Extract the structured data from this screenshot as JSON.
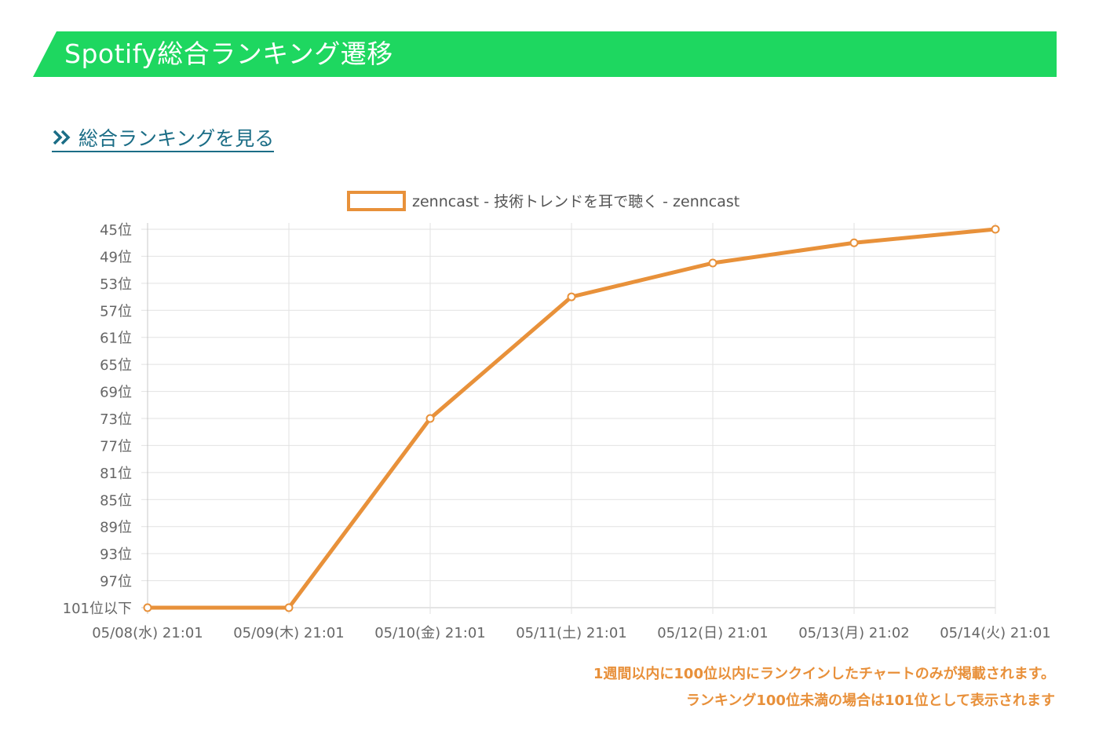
{
  "header": {
    "title": "Spotify総合ランキング遷移",
    "accent_color": "#1ed760"
  },
  "link": {
    "label": "総合ランキングを見る",
    "icon": "double-chevron-right-icon",
    "color": "#1b6d86"
  },
  "chart_data": {
    "type": "line",
    "title": "",
    "xlabel": "",
    "ylabel": "",
    "y_axis_reversed": true,
    "ylim": [
      45,
      101
    ],
    "y_ticks": [
      {
        "value": 45,
        "label": "45位"
      },
      {
        "value": 49,
        "label": "49位"
      },
      {
        "value": 53,
        "label": "53位"
      },
      {
        "value": 57,
        "label": "57位"
      },
      {
        "value": 61,
        "label": "61位"
      },
      {
        "value": 65,
        "label": "65位"
      },
      {
        "value": 69,
        "label": "69位"
      },
      {
        "value": 73,
        "label": "73位"
      },
      {
        "value": 77,
        "label": "77位"
      },
      {
        "value": 81,
        "label": "81位"
      },
      {
        "value": 85,
        "label": "85位"
      },
      {
        "value": 89,
        "label": "89位"
      },
      {
        "value": 93,
        "label": "93位"
      },
      {
        "value": 97,
        "label": "97位"
      },
      {
        "value": 101,
        "label": "101位以下"
      }
    ],
    "categories": [
      "05/08(水) 21:01",
      "05/09(木) 21:01",
      "05/10(金) 21:01",
      "05/11(土) 21:01",
      "05/12(日) 21:01",
      "05/13(月) 21:02",
      "05/14(火) 21:01"
    ],
    "series": [
      {
        "name": "zenncast - 技術トレンドを耳で聴く - zenncast",
        "color": "#e8913a",
        "values": [
          101,
          101,
          73,
          55,
          50,
          47,
          45
        ]
      }
    ],
    "grid": true,
    "legend_position": "top"
  },
  "notes": {
    "line1": "1週間以内に100位以内にランクインしたチャートのみが掲載されます。",
    "line2": "ランキング100位未満の場合は101位として表示されます",
    "color": "#e8903a"
  }
}
